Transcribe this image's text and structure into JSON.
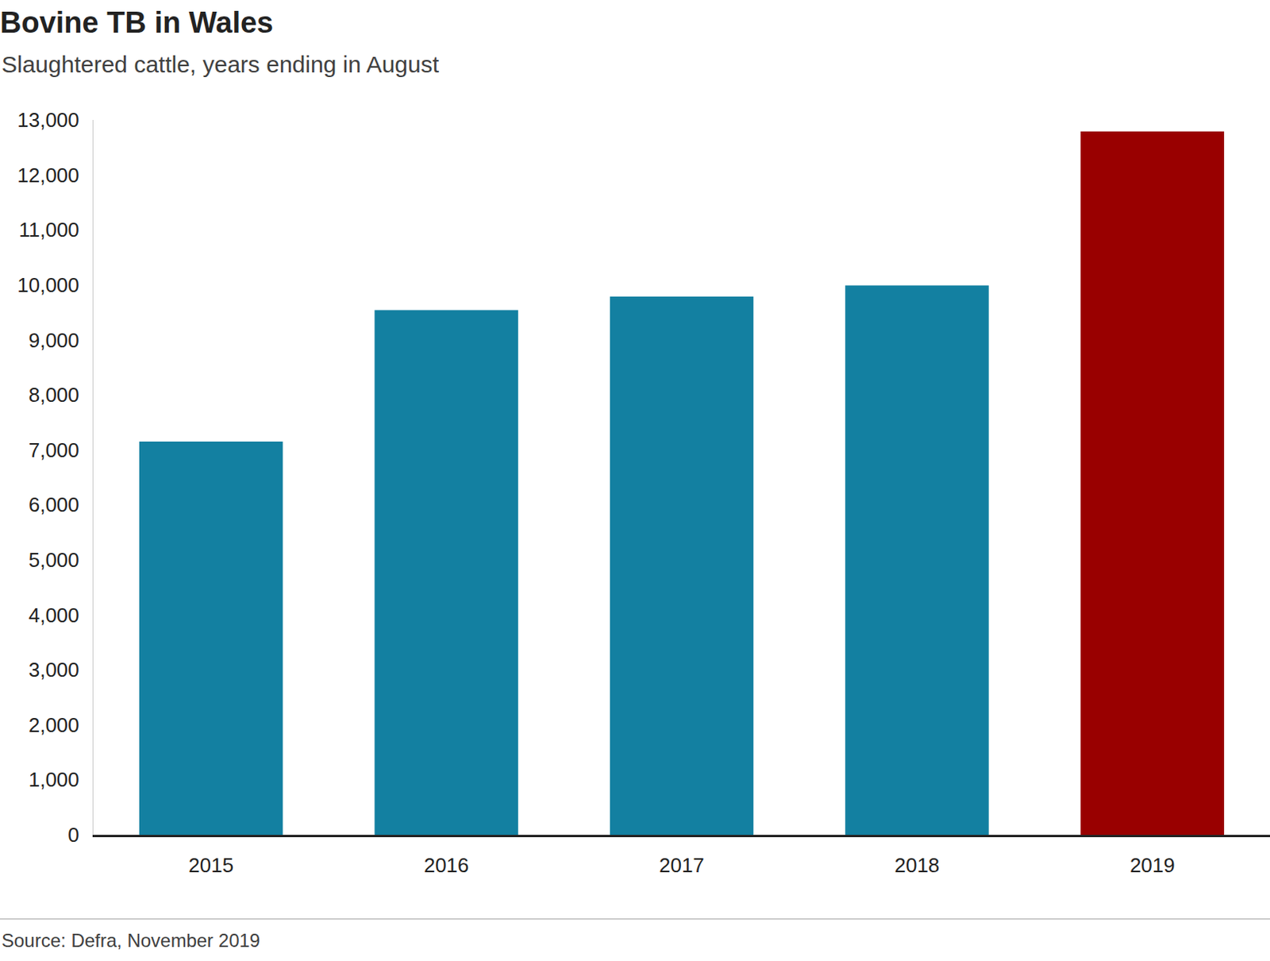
{
  "chart_data": {
    "type": "bar",
    "title": "Bovine TB in Wales",
    "subtitle": "Slaughtered cattle, years ending in August",
    "source": "Source: Defra, November 2019",
    "categories": [
      "2015",
      "2016",
      "2017",
      "2018",
      "2019"
    ],
    "values": [
      7150,
      9540,
      9790,
      9990,
      12790
    ],
    "colors": [
      "#1380a1",
      "#1380a1",
      "#1380a1",
      "#1380a1",
      "#990000"
    ],
    "ylim": [
      0,
      13000
    ],
    "yticks": [
      0,
      {
        "value": 1000,
        "label": "1,000"
      },
      {
        "value": 2000,
        "label": "2,000"
      },
      {
        "value": 3000,
        "label": "3,000"
      },
      {
        "value": 4000,
        "label": "4,000"
      },
      {
        "value": 5000,
        "label": "5,000"
      },
      {
        "value": 6000,
        "label": "6,000"
      },
      {
        "value": 7000,
        "label": "7,000"
      },
      {
        "value": 8000,
        "label": "8,000"
      },
      {
        "value": 9000,
        "label": "9,000"
      },
      {
        "value": 10000,
        "label": "10,000"
      },
      {
        "value": 11000,
        "label": "11,000"
      },
      {
        "value": 12000,
        "label": "12,000"
      },
      {
        "value": 13000,
        "label": "13,000"
      }
    ],
    "grid": false
  }
}
